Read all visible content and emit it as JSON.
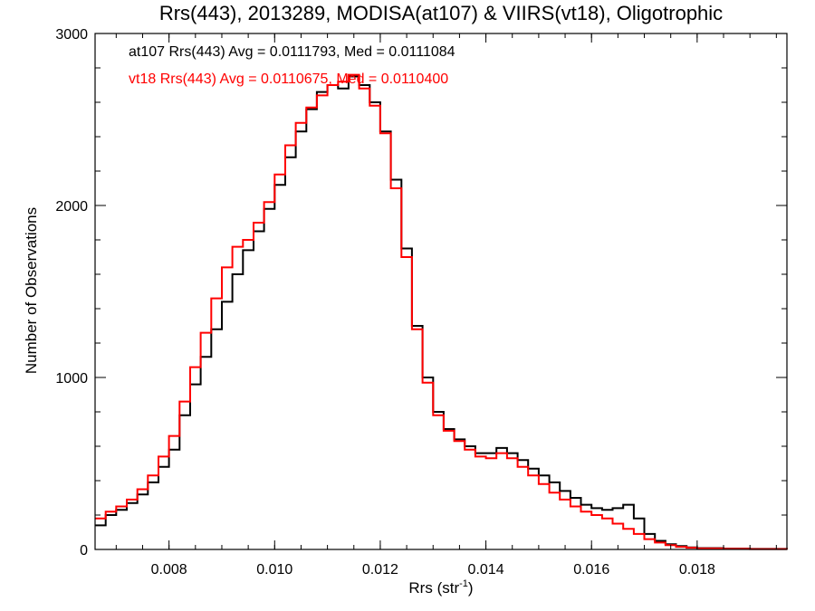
{
  "chart_data": {
    "type": "line",
    "title": "Rrs(443), 2013289, MODISA(at107) & VIIRS(vt18), Oligotrophic",
    "xlabel": "Rrs (str",
    "xlabel_sup": "-1",
    "xlabel_close": ")",
    "ylabel": "Number of Observations",
    "xlim": [
      0.0066,
      0.0197
    ],
    "ylim": [
      0,
      3000
    ],
    "xticks": [
      0.008,
      0.01,
      0.012,
      0.014,
      0.016,
      0.018
    ],
    "xtick_labels": [
      "0.008",
      "0.010",
      "0.012",
      "0.014",
      "0.016",
      "0.018"
    ],
    "yticks": [
      0,
      1000,
      2000,
      3000
    ],
    "ytick_labels": [
      "0",
      "1000",
      "2000",
      "3000"
    ],
    "grid": false,
    "legend_position": "top-left",
    "series": [
      {
        "name": "at107 Rrs(443) Avg = 0.0111793, Med = 0.0111084",
        "color": "#000000",
        "x": [
          0.0066,
          0.0068,
          0.007,
          0.0072,
          0.0074,
          0.0076,
          0.0078,
          0.008,
          0.0082,
          0.0084,
          0.0086,
          0.0088,
          0.009,
          0.0092,
          0.0094,
          0.0096,
          0.0098,
          0.01,
          0.0102,
          0.0104,
          0.0106,
          0.0108,
          0.011,
          0.0112,
          0.0114,
          0.0116,
          0.0118,
          0.012,
          0.0122,
          0.0124,
          0.0126,
          0.0128,
          0.013,
          0.0132,
          0.0134,
          0.0136,
          0.0138,
          0.014,
          0.0142,
          0.0144,
          0.0146,
          0.0148,
          0.015,
          0.0152,
          0.0154,
          0.0156,
          0.0158,
          0.016,
          0.0162,
          0.0164,
          0.0166,
          0.0168,
          0.017,
          0.0172,
          0.0174,
          0.0176,
          0.0178,
          0.018,
          0.0185,
          0.019,
          0.0197
        ],
        "y": [
          140,
          200,
          230,
          270,
          320,
          390,
          480,
          580,
          780,
          960,
          1120,
          1280,
          1440,
          1600,
          1740,
          1850,
          1980,
          2120,
          2280,
          2430,
          2560,
          2660,
          2700,
          2680,
          2750,
          2700,
          2600,
          2430,
          2150,
          1750,
          1300,
          1000,
          800,
          700,
          640,
          600,
          560,
          560,
          590,
          560,
          520,
          470,
          430,
          390,
          340,
          300,
          260,
          240,
          230,
          240,
          260,
          180,
          90,
          50,
          30,
          20,
          12,
          8,
          5,
          3,
          2
        ]
      },
      {
        "name": "vt18 Rrs(443) Avg = 0.0110675, Med = 0.0110400",
        "color": "#ff0000",
        "x": [
          0.0066,
          0.0068,
          0.007,
          0.0072,
          0.0074,
          0.0076,
          0.0078,
          0.008,
          0.0082,
          0.0084,
          0.0086,
          0.0088,
          0.009,
          0.0092,
          0.0094,
          0.0096,
          0.0098,
          0.01,
          0.0102,
          0.0104,
          0.0106,
          0.0108,
          0.011,
          0.0112,
          0.0114,
          0.0116,
          0.0118,
          0.012,
          0.0122,
          0.0124,
          0.0126,
          0.0128,
          0.013,
          0.0132,
          0.0134,
          0.0136,
          0.0138,
          0.014,
          0.0142,
          0.0144,
          0.0146,
          0.0148,
          0.015,
          0.0152,
          0.0154,
          0.0156,
          0.0158,
          0.016,
          0.0162,
          0.0164,
          0.0166,
          0.0168,
          0.017,
          0.0172,
          0.0174,
          0.0176,
          0.0178,
          0.018,
          0.0185,
          0.019,
          0.0197
        ],
        "y": [
          180,
          220,
          250,
          290,
          350,
          430,
          540,
          660,
          860,
          1060,
          1260,
          1460,
          1640,
          1760,
          1800,
          1900,
          2020,
          2180,
          2350,
          2480,
          2570,
          2640,
          2700,
          2720,
          2760,
          2680,
          2580,
          2420,
          2100,
          1700,
          1280,
          970,
          780,
          690,
          630,
          580,
          540,
          530,
          560,
          530,
          480,
          430,
          380,
          330,
          290,
          250,
          220,
          200,
          180,
          150,
          120,
          90,
          60,
          40,
          25,
          15,
          10,
          6,
          4,
          2,
          1
        ]
      }
    ]
  }
}
